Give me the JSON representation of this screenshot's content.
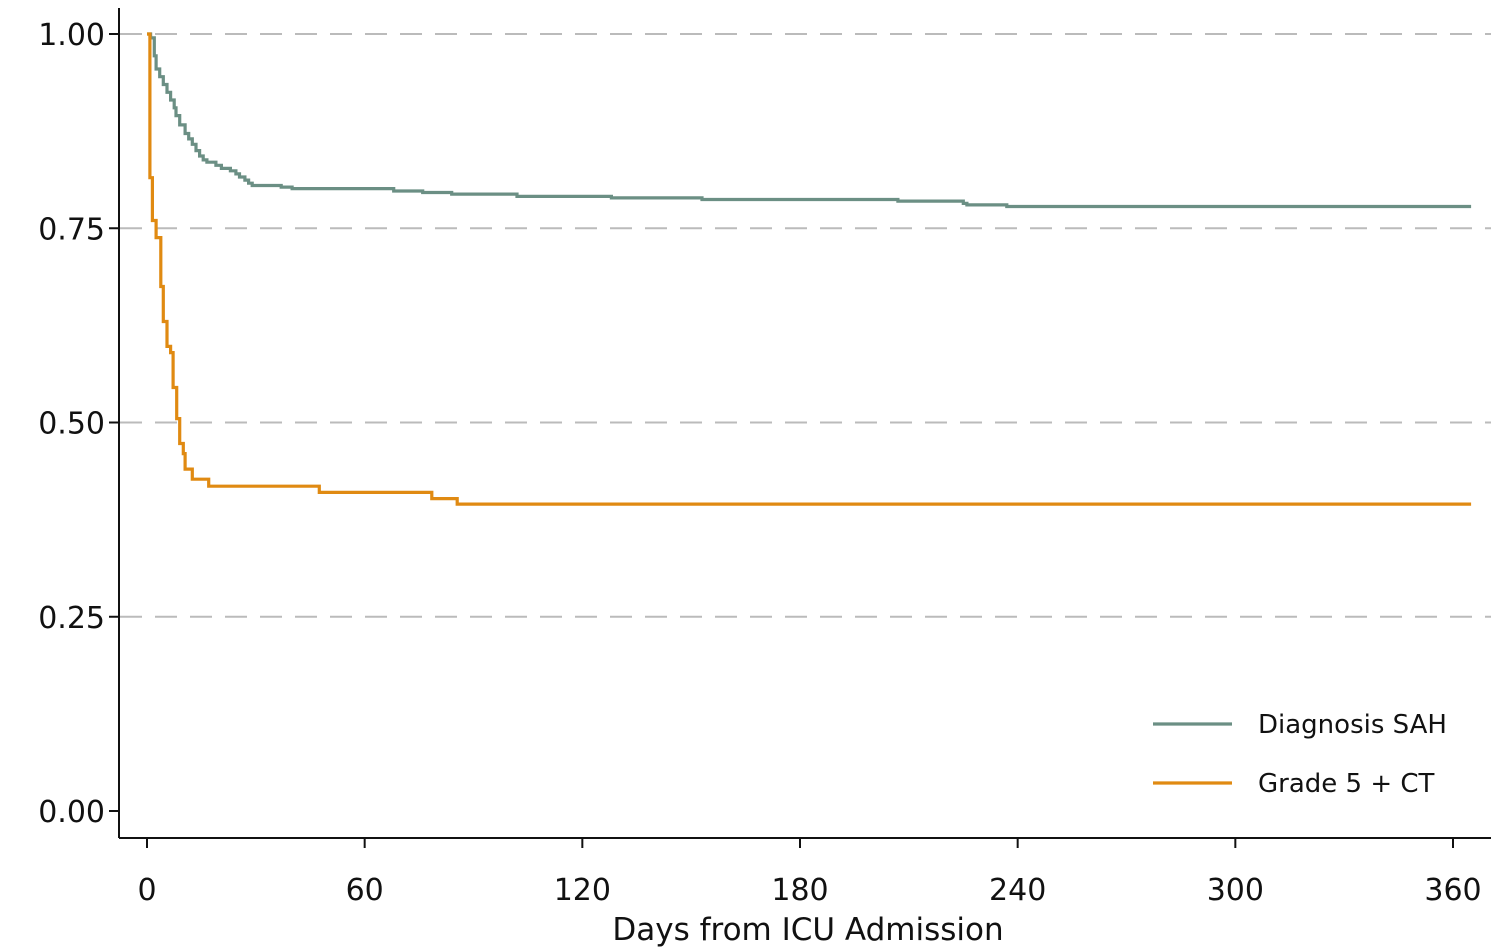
{
  "chart_data": {
    "type": "line",
    "title": "",
    "xlabel": "Days from ICU Admission",
    "ylabel": "",
    "xlim": [
      -4,
      369
    ],
    "ylim": [
      -0.035,
      1.035
    ],
    "x_ticks": [
      0,
      60,
      120,
      180,
      240,
      300,
      360
    ],
    "x_tick_labels": [
      "0",
      "60",
      "120",
      "180",
      "240",
      "300",
      "360"
    ],
    "y_ticks": [
      0.0,
      0.25,
      0.5,
      0.75,
      1.0
    ],
    "y_tick_labels": [
      "0.00",
      "0.25",
      "0.50",
      "0.75",
      "1.00"
    ],
    "grid": "horizontal dashed at y ticks",
    "legend_position": "bottom-right",
    "series": [
      {
        "name": "Diagnosis SAH",
        "color": "#6b8f84",
        "step": true,
        "points": [
          [
            0,
            1.0
          ],
          [
            1,
            0.995
          ],
          [
            2,
            0.972
          ],
          [
            2.5,
            0.955
          ],
          [
            3.5,
            0.945
          ],
          [
            4.5,
            0.935
          ],
          [
            5.5,
            0.925
          ],
          [
            6.5,
            0.915
          ],
          [
            7.5,
            0.905
          ],
          [
            8,
            0.895
          ],
          [
            9,
            0.883
          ],
          [
            10.5,
            0.872
          ],
          [
            11.5,
            0.865
          ],
          [
            12.5,
            0.858
          ],
          [
            13.5,
            0.85
          ],
          [
            14.5,
            0.843
          ],
          [
            15.5,
            0.838
          ],
          [
            16.5,
            0.835
          ],
          [
            19,
            0.831
          ],
          [
            20.5,
            0.827
          ],
          [
            23,
            0.824
          ],
          [
            24.5,
            0.82
          ],
          [
            25.5,
            0.816
          ],
          [
            27,
            0.812
          ],
          [
            28,
            0.808
          ],
          [
            29,
            0.805
          ],
          [
            37,
            0.803
          ],
          [
            40,
            0.801
          ],
          [
            68,
            0.798
          ],
          [
            76,
            0.796
          ],
          [
            84,
            0.794
          ],
          [
            102,
            0.791
          ],
          [
            128,
            0.789
          ],
          [
            153,
            0.787
          ],
          [
            207,
            0.785
          ],
          [
            225,
            0.782
          ],
          [
            226,
            0.78
          ],
          [
            237,
            0.778
          ],
          [
            365,
            0.778
          ]
        ]
      },
      {
        "name": "Grade 5 + CT",
        "color": "#e08a12",
        "step": true,
        "points": [
          [
            0,
            1.0
          ],
          [
            0.8,
            0.815
          ],
          [
            1.5,
            0.76
          ],
          [
            2.5,
            0.738
          ],
          [
            3.8,
            0.675
          ],
          [
            4.5,
            0.63
          ],
          [
            5.5,
            0.598
          ],
          [
            6.5,
            0.59
          ],
          [
            7.2,
            0.545
          ],
          [
            8.2,
            0.505
          ],
          [
            9,
            0.473
          ],
          [
            10,
            0.46
          ],
          [
            10.5,
            0.44
          ],
          [
            12.5,
            0.427
          ],
          [
            17,
            0.418
          ],
          [
            47.5,
            0.41
          ],
          [
            78.5,
            0.402
          ],
          [
            85.5,
            0.395
          ],
          [
            365,
            0.395
          ]
        ]
      }
    ]
  }
}
